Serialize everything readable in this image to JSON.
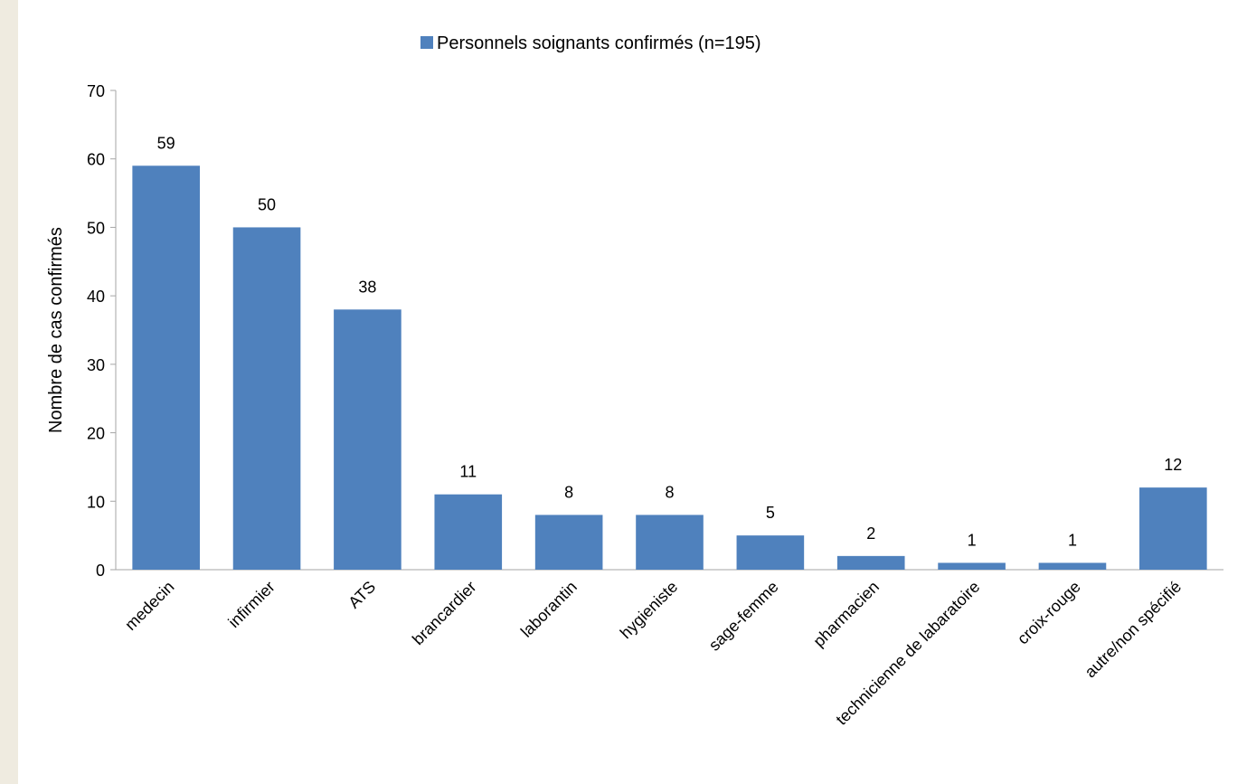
{
  "chart_data": {
    "type": "bar",
    "categories": [
      "medecin",
      "infirmier",
      "ATS",
      "brancardier",
      "laborantin",
      "hygieniste",
      "sage-femme",
      "pharmacien",
      "technicienne de labaratoire",
      "croix-rouge",
      "autre/non spécifié"
    ],
    "series": [
      {
        "name": "Personnels soignants confirmés (n=195)",
        "values": [
          59,
          50,
          38,
          11,
          8,
          8,
          5,
          2,
          1,
          1,
          12
        ],
        "color": "#4f81bd"
      }
    ],
    "data_labels": [
      "59",
      "50",
      "38",
      "11",
      "8",
      "8",
      "5",
      "2",
      "1",
      "1",
      "12"
    ],
    "ylabel": "Nombre de cas confirmés",
    "xlabel": "",
    "ylim": [
      0,
      70
    ],
    "yticks": [
      0,
      10,
      20,
      30,
      40,
      50,
      60,
      70
    ],
    "legend_position": "top",
    "grid": false,
    "colors": {
      "bar": "#4f81bd",
      "axis": "#a6a6a6",
      "page_background": "#efebe0",
      "chart_background": "#ffffff"
    }
  }
}
